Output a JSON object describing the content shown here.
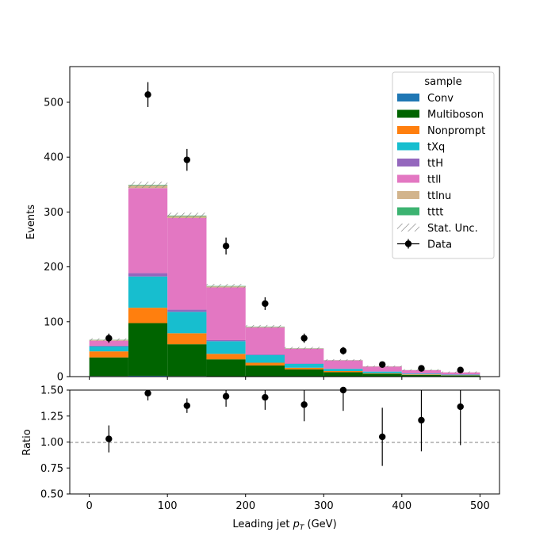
{
  "chart_data": [
    {
      "type": "bar",
      "stacked": true,
      "histogram": true,
      "bin_edges": [
        0,
        50,
        100,
        150,
        200,
        250,
        300,
        350,
        400,
        450,
        500
      ],
      "ylabel": "Events",
      "ylim": [
        0,
        565
      ],
      "yticks": [
        0,
        100,
        200,
        300,
        400,
        500
      ],
      "xlim": [
        -25,
        525
      ],
      "legend_title": "sample",
      "legend_position": "top-right",
      "series": [
        {
          "name": "Conv",
          "color": "#1f77b4",
          "values": [
            1,
            1.5,
            1,
            0.5,
            0.3,
            0.2,
            0.1,
            0.1,
            0.05,
            0.05
          ]
        },
        {
          "name": "Multiboson",
          "color": "#006400",
          "values": [
            34,
            96,
            58,
            31,
            20,
            13,
            8,
            5,
            3,
            2
          ]
        },
        {
          "name": "Nonprompt",
          "color": "#ff7f0e",
          "values": [
            11,
            28,
            20,
            10,
            5,
            3,
            2,
            1,
            1,
            0.5
          ]
        },
        {
          "name": "tXq",
          "color": "#17becf",
          "values": [
            9,
            57,
            39,
            23,
            14,
            7,
            4,
            3,
            1.5,
            1
          ]
        },
        {
          "name": "ttH",
          "color": "#9467bd",
          "values": [
            1.5,
            6,
            4,
            2,
            1.2,
            0.7,
            0.4,
            0.2,
            0.1,
            0.1
          ]
        },
        {
          "name": "ttll",
          "color": "#e377c2",
          "values": [
            9,
            155,
            167,
            96,
            49,
            27,
            15,
            9,
            6,
            4
          ]
        },
        {
          "name": "ttlnu",
          "color": "#d2b48c",
          "values": [
            1.5,
            5,
            3.5,
            2,
            1.2,
            0.7,
            0.4,
            0.3,
            0.2,
            0.1
          ]
        },
        {
          "name": "tttt",
          "color": "#3cb371",
          "values": [
            0.3,
            1,
            1,
            0.7,
            0.5,
            0.3,
            0.2,
            0.1,
            0.1,
            0.05
          ]
        }
      ],
      "uncertainty_label": "Stat. Unc.",
      "data": {
        "name": "Data",
        "x": [
          25,
          75,
          125,
          175,
          225,
          275,
          325,
          375,
          425,
          475
        ],
        "y": [
          70,
          514,
          395,
          238,
          133,
          70,
          47,
          22,
          15,
          12
        ],
        "yerr": [
          8.4,
          22.7,
          19.9,
          15.4,
          11.5,
          8.4,
          6.9,
          4.7,
          3.9,
          3.5
        ]
      }
    },
    {
      "type": "scatter",
      "xlabel": "Leading jet  p_T (GeV)",
      "ylabel": "Ratio",
      "ylim": [
        0.5,
        1.5
      ],
      "yticks": [
        "0.50",
        "0.75",
        "1.00",
        "1.25",
        "1.50"
      ],
      "xticks": [
        0,
        100,
        200,
        300,
        400,
        500
      ],
      "xlim": [
        -25,
        525
      ],
      "reference_line": 1.0,
      "x": [
        25,
        75,
        125,
        175,
        225,
        275,
        325,
        375,
        425,
        475
      ],
      "y": [
        1.03,
        1.47,
        1.35,
        1.44,
        1.43,
        1.36,
        1.51,
        1.05,
        1.21,
        1.34
      ],
      "yerr": [
        0.13,
        0.07,
        0.07,
        0.1,
        0.12,
        0.16,
        0.21,
        0.28,
        0.3,
        0.37
      ]
    }
  ]
}
